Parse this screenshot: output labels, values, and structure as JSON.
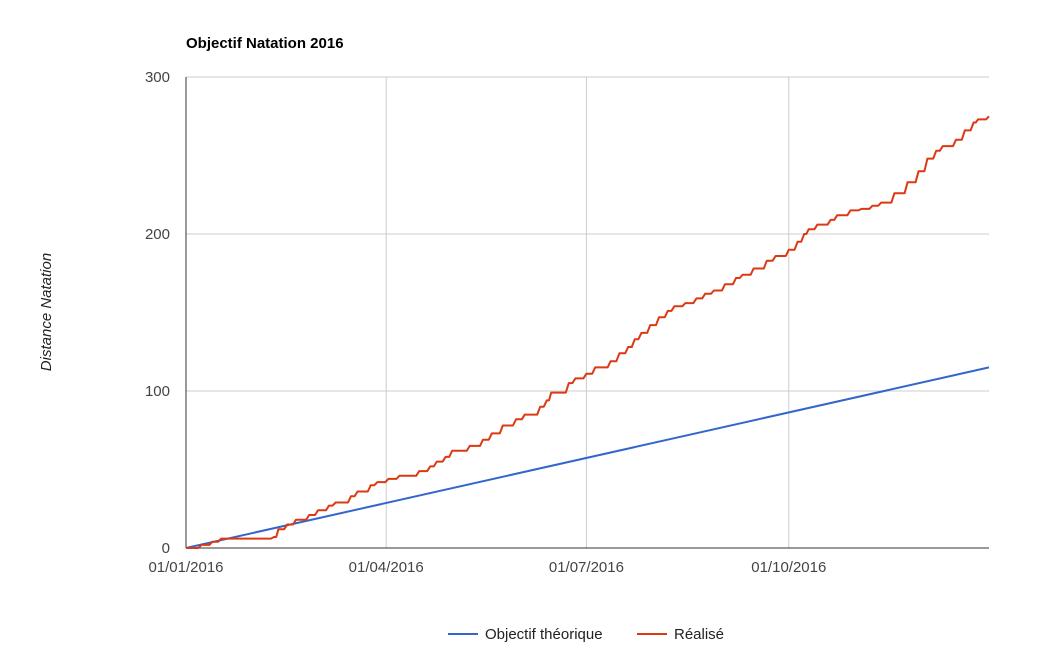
{
  "chart_data": {
    "type": "line",
    "title": "Objectif Natation 2016",
    "xlabel": "",
    "ylabel": "Distance Natation",
    "x_range": [
      "2016-01-01",
      "2016-12-31"
    ],
    "ylim": [
      0,
      300
    ],
    "y_ticks": [
      0,
      100,
      200,
      300
    ],
    "x_ticks": [
      {
        "date": "2016-01-01",
        "label": "01/01/2016"
      },
      {
        "date": "2016-04-01",
        "label": "01/04/2016"
      },
      {
        "date": "2016-07-01",
        "label": "01/07/2016"
      },
      {
        "date": "2016-10-01",
        "label": "01/10/2016"
      }
    ],
    "grid": true,
    "legend_position": "bottom",
    "series": [
      {
        "name": "Objectif théorique",
        "color": "#3366cc",
        "step": false,
        "points": [
          [
            "2016-01-01",
            0
          ],
          [
            "2016-12-31",
            115
          ]
        ]
      },
      {
        "name": "Réalisé",
        "color": "#dc3912",
        "step": true,
        "points": [
          [
            "2016-01-01",
            0
          ],
          [
            "2016-01-08",
            2
          ],
          [
            "2016-01-13",
            4
          ],
          [
            "2016-01-17",
            6
          ],
          [
            "2016-02-10",
            7
          ],
          [
            "2016-02-12",
            12
          ],
          [
            "2016-02-16",
            15
          ],
          [
            "2016-02-20",
            18
          ],
          [
            "2016-02-26",
            21
          ],
          [
            "2016-03-01",
            24
          ],
          [
            "2016-03-06",
            27
          ],
          [
            "2016-03-09",
            29
          ],
          [
            "2016-03-16",
            33
          ],
          [
            "2016-03-19",
            36
          ],
          [
            "2016-03-25",
            40
          ],
          [
            "2016-03-28",
            42
          ],
          [
            "2016-04-02",
            44
          ],
          [
            "2016-04-07",
            46
          ],
          [
            "2016-04-16",
            49
          ],
          [
            "2016-04-21",
            52
          ],
          [
            "2016-04-24",
            55
          ],
          [
            "2016-04-28",
            58
          ],
          [
            "2016-05-01",
            62
          ],
          [
            "2016-05-09",
            65
          ],
          [
            "2016-05-15",
            69
          ],
          [
            "2016-05-19",
            73
          ],
          [
            "2016-05-24",
            78
          ],
          [
            "2016-05-30",
            82
          ],
          [
            "2016-06-03",
            85
          ],
          [
            "2016-06-10",
            90
          ],
          [
            "2016-06-13",
            94
          ],
          [
            "2016-06-15",
            99
          ],
          [
            "2016-06-23",
            105
          ],
          [
            "2016-06-26",
            108
          ],
          [
            "2016-07-01",
            111
          ],
          [
            "2016-07-05",
            115
          ],
          [
            "2016-07-12",
            119
          ],
          [
            "2016-07-16",
            124
          ],
          [
            "2016-07-20",
            128
          ],
          [
            "2016-07-23",
            133
          ],
          [
            "2016-07-26",
            137
          ],
          [
            "2016-07-30",
            142
          ],
          [
            "2016-08-03",
            147
          ],
          [
            "2016-08-07",
            151
          ],
          [
            "2016-08-10",
            154
          ],
          [
            "2016-08-15",
            156
          ],
          [
            "2016-08-20",
            159
          ],
          [
            "2016-08-24",
            162
          ],
          [
            "2016-08-28",
            164
          ],
          [
            "2016-09-02",
            168
          ],
          [
            "2016-09-07",
            172
          ],
          [
            "2016-09-10",
            174
          ],
          [
            "2016-09-15",
            178
          ],
          [
            "2016-09-21",
            183
          ],
          [
            "2016-09-25",
            186
          ],
          [
            "2016-10-01",
            190
          ],
          [
            "2016-10-05",
            195
          ],
          [
            "2016-10-08",
            200
          ],
          [
            "2016-10-10",
            203
          ],
          [
            "2016-10-14",
            206
          ],
          [
            "2016-10-20",
            209
          ],
          [
            "2016-10-23",
            212
          ],
          [
            "2016-10-29",
            215
          ],
          [
            "2016-11-03",
            216
          ],
          [
            "2016-11-08",
            218
          ],
          [
            "2016-11-12",
            220
          ],
          [
            "2016-11-18",
            226
          ],
          [
            "2016-11-24",
            233
          ],
          [
            "2016-11-29",
            240
          ],
          [
            "2016-12-03",
            248
          ],
          [
            "2016-12-07",
            253
          ],
          [
            "2016-12-10",
            256
          ],
          [
            "2016-12-16",
            260
          ],
          [
            "2016-12-20",
            266
          ],
          [
            "2016-12-24",
            271
          ],
          [
            "2016-12-26",
            273
          ],
          [
            "2016-12-31",
            275
          ]
        ]
      }
    ]
  }
}
